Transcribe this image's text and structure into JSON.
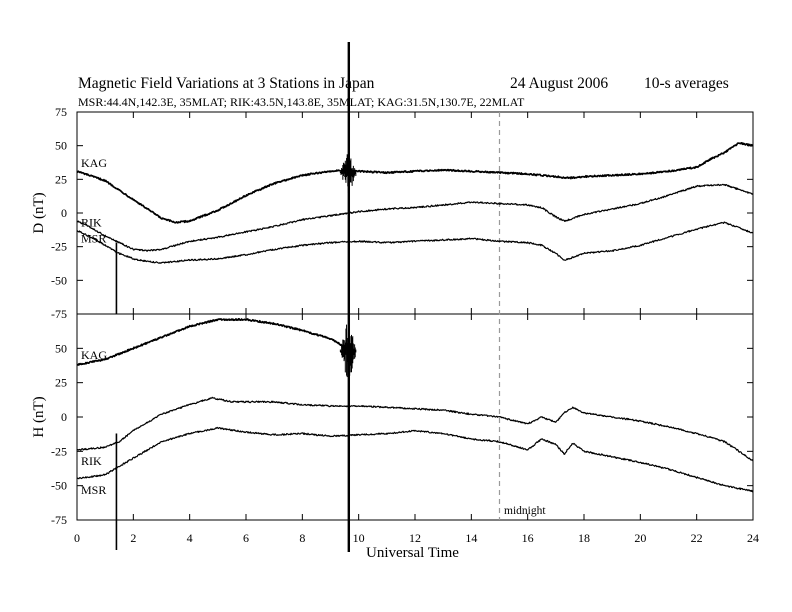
{
  "chart_data": {
    "type": "line",
    "title": "Magnetic Field Variations at 3 Stations in Japan",
    "date": "24  August  2006",
    "averaging": "10-s averages",
    "subtitle": "MSR:44.4N,142.3E, 35MLAT;  RIK:43.5N,143.8E, 35MLAT;  KAG:31.5N,130.7E, 22MLAT",
    "xlabel": "Universal Time",
    "xlim": [
      0,
      24
    ],
    "x_ticks": [
      "0",
      "2",
      "4",
      "6",
      "8",
      "10",
      "12",
      "14",
      "16",
      "18",
      "20",
      "22",
      "24"
    ],
    "marker_time": 15,
    "marker_label": "midnight",
    "panels": [
      {
        "ylabel": "D (nT)",
        "ylim": [
          -75,
          75
        ],
        "y_ticks": [
          "75",
          "50",
          "25",
          "0",
          "-25",
          "-50",
          "-75"
        ],
        "series": [
          {
            "name": "KAG",
            "x": [
              0,
              1,
              2,
              3,
              3.5,
              4,
              5,
              6,
              7,
              8,
              9,
              9.5,
              10,
              11,
              12,
              13,
              14,
              15,
              16,
              17,
              17.5,
              18,
              19,
              20,
              21,
              22,
              22.5,
              23,
              23.5,
              24
            ],
            "values": [
              31,
              24,
              10,
              -4,
              -7,
              -6,
              2,
              13,
              22,
              28,
              31,
              32,
              31,
              30,
              31,
              32,
              31,
              30,
              29,
              27,
              26,
              27,
              28,
              29,
              31,
              34,
              40,
              45,
              52,
              50
            ]
          },
          {
            "name": "RIK",
            "x": [
              0,
              0.5,
              1,
              1.5,
              2,
              2.5,
              3,
              4,
              5,
              6,
              7,
              8,
              9,
              10,
              11,
              12,
              13,
              14,
              15,
              16,
              16.5,
              17,
              17.3,
              17.6,
              18,
              19,
              20,
              21,
              22,
              23,
              24
            ],
            "values": [
              -6,
              -11,
              -17,
              -22,
              -27,
              -28,
              -27,
              -21,
              -18,
              -14,
              -10,
              -5,
              -2,
              1,
              3,
              4,
              6,
              8,
              7,
              6,
              4,
              -3,
              -6,
              -4,
              -1,
              3,
              7,
              13,
              20,
              21,
              14
            ]
          },
          {
            "name": "MSR",
            "x": [
              0,
              0.5,
              1,
              1.5,
              2,
              2.5,
              3,
              4,
              5,
              6,
              7,
              8,
              9,
              10,
              11,
              12,
              13,
              14,
              15,
              16,
              16.5,
              17,
              17.3,
              17.6,
              18,
              19,
              20,
              21,
              22,
              23,
              24
            ],
            "values": [
              -13,
              -18,
              -24,
              -30,
              -34,
              -36,
              -37,
              -35,
              -34,
              -31,
              -27,
              -24,
              -22,
              -21,
              -22,
              -21,
              -20,
              -19,
              -21,
              -22,
              -24,
              -30,
              -35,
              -33,
              -30,
              -28,
              -24,
              -18,
              -12,
              -7,
              -15
            ]
          }
        ]
      },
      {
        "ylabel": "H (nT)",
        "ylim": [
          -75,
          75
        ],
        "y_ticks": [
          "75",
          "50",
          "25",
          "0",
          "-25",
          "-50",
          "-75"
        ],
        "series": [
          {
            "name": "KAG",
            "x": [
              0,
              1,
              2,
              3,
              4,
              5,
              6,
              7,
              8,
              9,
              9.6
            ],
            "values": [
              38,
              42,
              50,
              58,
              66,
              71,
              71,
              68,
              63,
              57,
              50
            ]
          },
          {
            "name": "RIK",
            "x": [
              0,
              1,
              1.5,
              2,
              3,
              4,
              4.8,
              5.5,
              6,
              7,
              8,
              9,
              10,
              11,
              12,
              13,
              14,
              15,
              16,
              16.5,
              17,
              17.3,
              17.6,
              18,
              19,
              20,
              21,
              22,
              23,
              24
            ],
            "values": [
              -24,
              -22,
              -18,
              -10,
              2,
              9,
              14,
              11,
              11,
              11,
              9,
              8,
              8,
              7,
              6,
              5,
              2,
              0,
              -5,
              0,
              -4,
              3,
              7,
              3,
              0,
              -3,
              -7,
              -12,
              -18,
              -32
            ]
          },
          {
            "name": "MSR",
            "x": [
              0,
              1,
              1.5,
              2,
              3,
              4,
              5,
              6,
              7,
              8,
              9,
              10,
              11,
              12,
              13,
              14,
              15,
              16,
              16.5,
              17,
              17.3,
              17.6,
              18,
              19,
              20,
              21,
              22,
              23,
              24
            ],
            "values": [
              -45,
              -42,
              -36,
              -30,
              -18,
              -12,
              -8,
              -11,
              -13,
              -12,
              -14,
              -13,
              -12,
              -10,
              -12,
              -16,
              -18,
              -24,
              -16,
              -20,
              -27,
              -19,
              -25,
              -29,
              -33,
              -38,
              -44,
              -50,
              -54
            ]
          }
        ]
      }
    ]
  }
}
